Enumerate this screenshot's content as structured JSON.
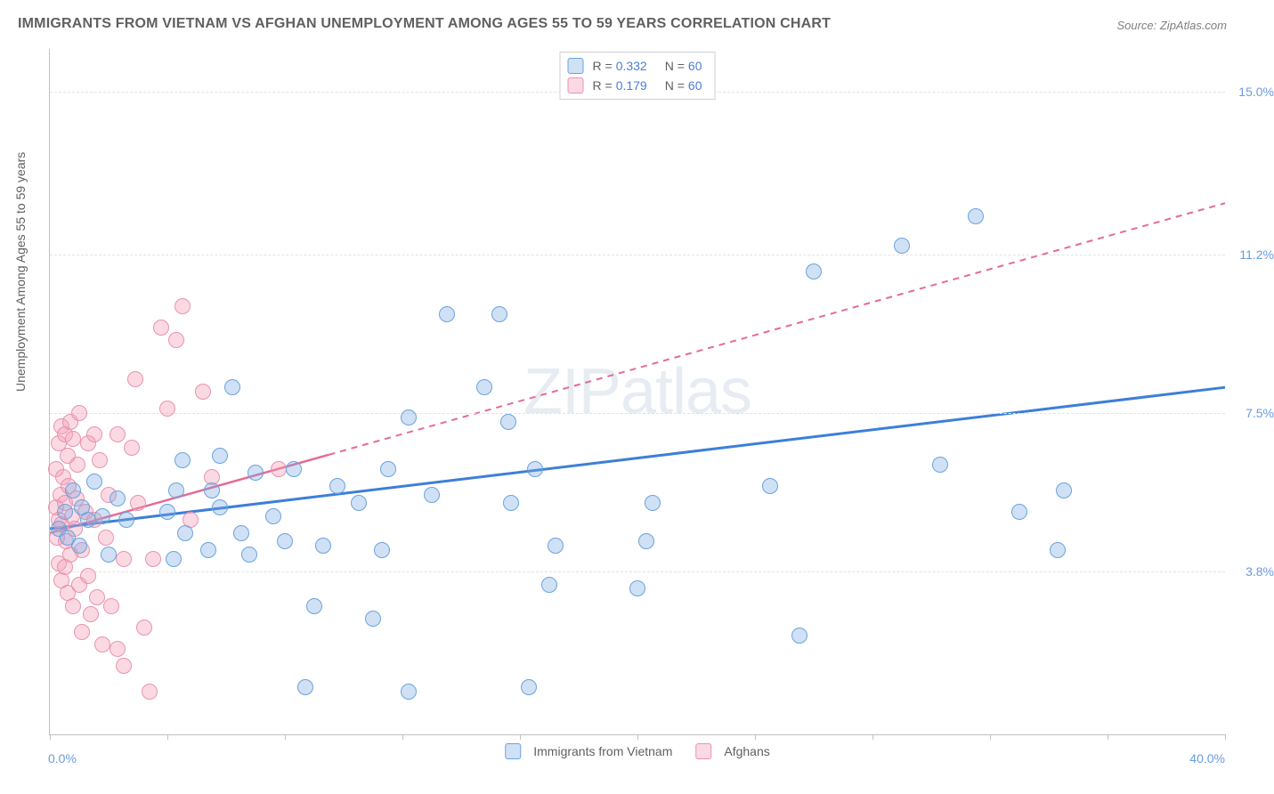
{
  "title": "IMMIGRANTS FROM VIETNAM VS AFGHAN UNEMPLOYMENT AMONG AGES 55 TO 59 YEARS CORRELATION CHART",
  "source_prefix": "Source: ",
  "source_name": "ZipAtlas.com",
  "watermark": "ZIPatlas",
  "chart": {
    "type": "scatter",
    "xlim": [
      0,
      40
    ],
    "ylim": [
      0,
      16
    ],
    "x_tick_positions": [
      0,
      4,
      8,
      12,
      16,
      20,
      24,
      28,
      32,
      36,
      40
    ],
    "x_tick_labels_visible": {
      "0": "0.0%",
      "40": "40.0%"
    },
    "y_grid_positions": [
      3.8,
      7.5,
      11.2,
      15.0
    ],
    "y_grid_labels": [
      "3.8%",
      "7.5%",
      "11.2%",
      "15.0%"
    ],
    "y_axis_label": "Unemployment Among Ages 55 to 59 years",
    "background_color": "#ffffff",
    "grid_color": "#e2e2e2",
    "axis_color": "#c0c0c0",
    "tick_label_color": "#6a9ae0",
    "marker_radius": 9,
    "marker_border_width": 1.5
  },
  "series": {
    "blue": {
      "label": "Immigrants from Vietnam",
      "fill": "rgba(120,170,225,0.35)",
      "stroke": "#6aa3de",
      "r_label": "R = ",
      "r_value": "0.332",
      "n_label": "N = ",
      "n_value": "60",
      "trend": {
        "x1": 0,
        "y1": 4.8,
        "x2": 40,
        "y2": 8.1,
        "solid_to_x": 40,
        "color": "#3d7fd6",
        "width": 3
      },
      "points": [
        [
          0.3,
          4.8
        ],
        [
          0.5,
          5.2
        ],
        [
          0.6,
          4.6
        ],
        [
          0.8,
          5.7
        ],
        [
          1.0,
          4.4
        ],
        [
          1.1,
          5.3
        ],
        [
          1.3,
          5.0
        ],
        [
          1.5,
          5.9
        ],
        [
          1.8,
          5.1
        ],
        [
          2.0,
          4.2
        ],
        [
          2.3,
          5.5
        ],
        [
          2.6,
          5.0
        ],
        [
          4.0,
          5.2
        ],
        [
          4.2,
          4.1
        ],
        [
          4.3,
          5.7
        ],
        [
          4.5,
          6.4
        ],
        [
          4.6,
          4.7
        ],
        [
          5.4,
          4.3
        ],
        [
          5.5,
          5.7
        ],
        [
          5.8,
          5.3
        ],
        [
          5.8,
          6.5
        ],
        [
          6.2,
          8.1
        ],
        [
          6.5,
          4.7
        ],
        [
          6.8,
          4.2
        ],
        [
          7.0,
          6.1
        ],
        [
          7.6,
          5.1
        ],
        [
          8.0,
          4.5
        ],
        [
          8.3,
          6.2
        ],
        [
          8.7,
          1.1
        ],
        [
          9.0,
          3.0
        ],
        [
          9.3,
          4.4
        ],
        [
          9.8,
          5.8
        ],
        [
          10.5,
          5.4
        ],
        [
          11.0,
          2.7
        ],
        [
          11.3,
          4.3
        ],
        [
          11.5,
          6.2
        ],
        [
          12.2,
          1.0
        ],
        [
          12.2,
          7.4
        ],
        [
          13.0,
          5.6
        ],
        [
          13.5,
          9.8
        ],
        [
          14.8,
          8.1
        ],
        [
          15.3,
          9.8
        ],
        [
          15.6,
          7.3
        ],
        [
          15.7,
          5.4
        ],
        [
          16.3,
          1.1
        ],
        [
          16.5,
          6.2
        ],
        [
          17.0,
          3.5
        ],
        [
          17.2,
          4.4
        ],
        [
          20.0,
          3.4
        ],
        [
          20.3,
          4.5
        ],
        [
          20.5,
          5.4
        ],
        [
          24.5,
          5.8
        ],
        [
          25.5,
          2.3
        ],
        [
          26.0,
          10.8
        ],
        [
          29.0,
          11.4
        ],
        [
          30.3,
          6.3
        ],
        [
          31.5,
          12.1
        ],
        [
          33.0,
          5.2
        ],
        [
          34.3,
          4.3
        ],
        [
          34.5,
          5.7
        ]
      ]
    },
    "pink": {
      "label": "Afghans",
      "fill": "rgba(245,160,185,0.4)",
      "stroke": "#e893af",
      "r_label": "R = ",
      "r_value": "0.179",
      "n_label": "N = ",
      "n_value": "60",
      "trend": {
        "x1": 0,
        "y1": 4.7,
        "x2": 40,
        "y2": 12.4,
        "solid_to_x": 9.5,
        "color": "#e56b93",
        "width": 2.5,
        "dash": "7,6"
      },
      "points": [
        [
          0.2,
          5.3
        ],
        [
          0.2,
          6.2
        ],
        [
          0.25,
          4.6
        ],
        [
          0.3,
          5.0
        ],
        [
          0.3,
          6.8
        ],
        [
          0.3,
          4.0
        ],
        [
          0.35,
          5.6
        ],
        [
          0.4,
          7.2
        ],
        [
          0.4,
          3.6
        ],
        [
          0.4,
          4.9
        ],
        [
          0.45,
          6.0
        ],
        [
          0.5,
          7.0
        ],
        [
          0.5,
          3.9
        ],
        [
          0.5,
          5.4
        ],
        [
          0.55,
          4.5
        ],
        [
          0.6,
          6.5
        ],
        [
          0.6,
          3.3
        ],
        [
          0.65,
          5.8
        ],
        [
          0.7,
          7.3
        ],
        [
          0.7,
          4.2
        ],
        [
          0.75,
          5.1
        ],
        [
          0.8,
          6.9
        ],
        [
          0.8,
          3.0
        ],
        [
          0.85,
          4.8
        ],
        [
          0.9,
          5.5
        ],
        [
          0.95,
          6.3
        ],
        [
          1.0,
          3.5
        ],
        [
          1.0,
          7.5
        ],
        [
          1.1,
          2.4
        ],
        [
          1.1,
          4.3
        ],
        [
          1.2,
          5.2
        ],
        [
          1.3,
          6.8
        ],
        [
          1.3,
          3.7
        ],
        [
          1.4,
          2.8
        ],
        [
          1.5,
          5.0
        ],
        [
          1.5,
          7.0
        ],
        [
          1.6,
          3.2
        ],
        [
          1.7,
          6.4
        ],
        [
          1.8,
          2.1
        ],
        [
          1.9,
          4.6
        ],
        [
          2.0,
          5.6
        ],
        [
          2.1,
          3.0
        ],
        [
          2.3,
          7.0
        ],
        [
          2.3,
          2.0
        ],
        [
          2.5,
          4.1
        ],
        [
          2.5,
          1.6
        ],
        [
          2.8,
          6.7
        ],
        [
          2.9,
          8.3
        ],
        [
          3.0,
          5.4
        ],
        [
          3.2,
          2.5
        ],
        [
          3.4,
          1.0
        ],
        [
          3.5,
          4.1
        ],
        [
          3.8,
          9.5
        ],
        [
          4.0,
          7.6
        ],
        [
          4.3,
          9.2
        ],
        [
          4.5,
          10.0
        ],
        [
          4.8,
          5.0
        ],
        [
          5.2,
          8.0
        ],
        [
          5.5,
          6.0
        ],
        [
          7.8,
          6.2
        ]
      ]
    }
  }
}
